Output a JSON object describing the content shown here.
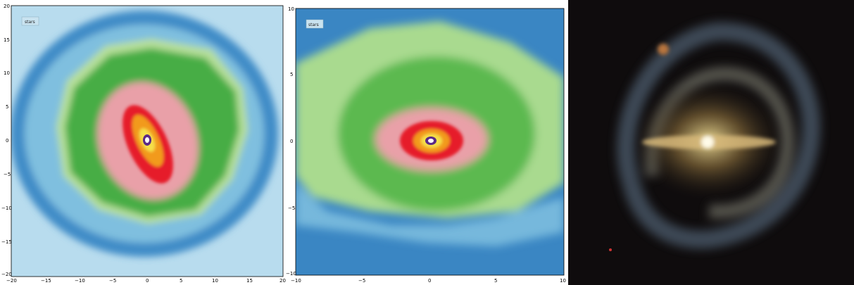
{
  "panels": [
    {
      "legend_label": "stars",
      "x_ticks": [
        "−20",
        "−15",
        "−10",
        "−5",
        "0",
        "5",
        "10",
        "15",
        "20"
      ],
      "y_ticks": [
        "20",
        "15",
        "10",
        "5",
        "0",
        "−5",
        "−10",
        "−15",
        "−20"
      ]
    },
    {
      "legend_label": "stars",
      "x_ticks": [
        "−10",
        "−5",
        "0",
        "5",
        "10"
      ],
      "y_ticks": [
        "10",
        "5",
        "0",
        "−5",
        "−10"
      ]
    }
  ],
  "photo": {
    "subject": "galaxy-photo"
  },
  "colors": {
    "outer": "#a8d3ea",
    "blue": "#2f7fbf",
    "lightgreen": "#a6d98f",
    "green": "#43ad43",
    "pink": "#f09aa8",
    "red": "#e8202a",
    "orange": "#f39c1f",
    "yellow": "#f4e04a",
    "purple": "#5b2a86"
  }
}
